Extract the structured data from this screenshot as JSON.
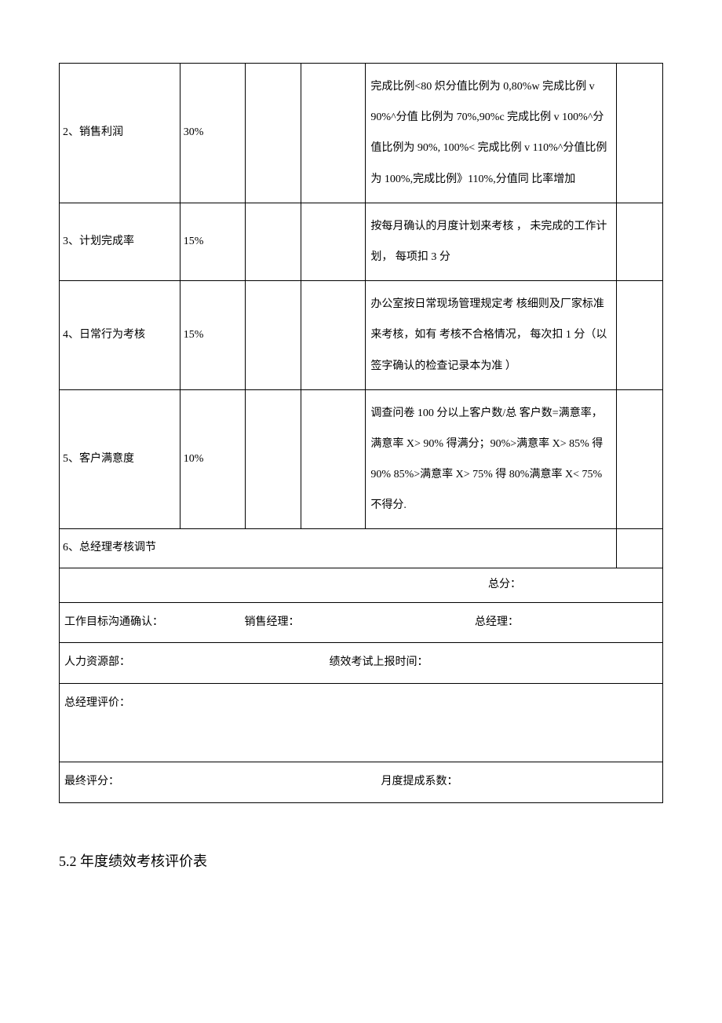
{
  "table": {
    "rows": [
      {
        "name": "2、销售利润",
        "weight": "30%",
        "desc": "完成比例<80 炽分值比例为 0,80%w 完成比例 v 90%^分值 比例为 70%,90%c 完成比例 v 100%^分值比例为  90%, 100%< 完成比例 v 110%^分值比例为 100%,完成比例》110%,分值同 比率增加"
      },
      {
        "name": "3、计划完成率",
        "weight": "15%",
        "desc": "按每月确认的月度计划来考核       ， 未完成的工作计划，  每项扣 3 分"
      },
      {
        "name": "4、日常行为考核",
        "weight": "15%",
        "desc": "办公室按日常现场管理规定考 核细则及厂家标准来考核，如有  考核不合格情况，  每次扣 1 分（以  签字确认的检查记录本为准   ）"
      },
      {
        "name": "5、客户满意度",
        "weight": "10%",
        "desc": "调查问卷 100 分以上客户数/总  客户数=满意率，   满意率 X>  90% 得满分；90%>满意率 X>  85% 得 90% 85%>满意率  X>  75% 得 80%满意率 X<  75%不得分."
      }
    ],
    "adjust_row": "6、总经理考核调节",
    "total_label": "总分：",
    "confirm": {
      "label1": "工作目标沟通确认：",
      "label2": "销售经理：",
      "label3": "总经理："
    },
    "hr": {
      "label1": "人力资源部：",
      "label2": "绩效考试上报时间："
    },
    "eval_label": "总经理评价：",
    "final": {
      "label1": "最终评分：",
      "label2": "月度提成系数："
    }
  },
  "section_title": "5.2 年度绩效考核评价表"
}
